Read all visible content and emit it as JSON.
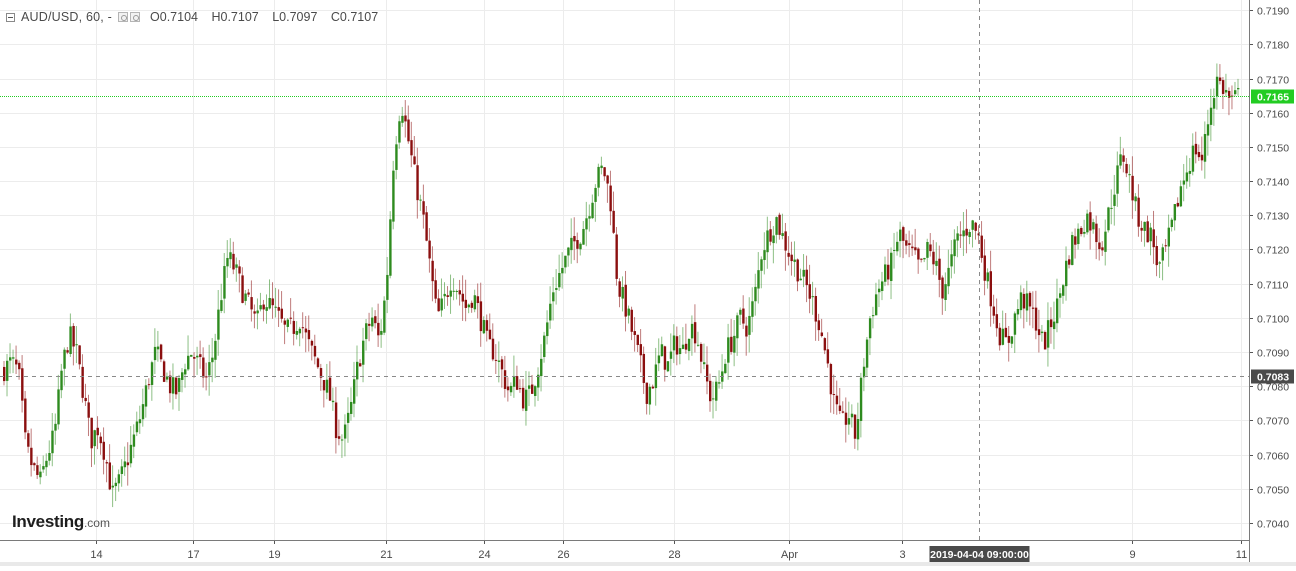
{
  "legend": {
    "symbol": "AUD/USD, 60, -",
    "open_label": "O",
    "open": "0.7104",
    "high_label": "H",
    "high": "0.7107",
    "low_label": "L",
    "low": "0.7097",
    "close_label": "C",
    "close": "0.7107"
  },
  "watermark": {
    "brand": "Investing",
    "suffix": ".com"
  },
  "colors": {
    "up": "#2e8b1f",
    "down": "#8b0f0f",
    "last_price_bg": "#22cc22",
    "crosshair_bg": "#4a4a4a",
    "grid": "#ececec"
  },
  "chart_data": {
    "type": "candlestick",
    "symbol": "AUD/USD",
    "interval": "60",
    "ylim": [
      0.7035,
      0.7193
    ],
    "y_ticks": [
      "0.7040",
      "0.7050",
      "0.7060",
      "0.7070",
      "0.7080",
      "0.7090",
      "0.7100",
      "0.7110",
      "0.7120",
      "0.7130",
      "0.7140",
      "0.7150",
      "0.7160",
      "0.7170",
      "0.7180",
      "0.7190"
    ],
    "x_ticks": [
      "14",
      "17",
      "19",
      "21",
      "24",
      "26",
      "28",
      "Apr",
      "3",
      "9",
      "11"
    ],
    "last_price": "0.7165",
    "crosshair_price": "0.7083",
    "crosshair_time": "2019-04-04 09:00:00",
    "grid": true,
    "price_path": [
      0.7085,
      0.7087,
      0.7084,
      0.7062,
      0.7056,
      0.7052,
      0.706,
      0.7066,
      0.7085,
      0.7095,
      0.709,
      0.7078,
      0.7064,
      0.7068,
      0.706,
      0.7048,
      0.7052,
      0.7058,
      0.7065,
      0.7072,
      0.7082,
      0.709,
      0.7085,
      0.708,
      0.7078,
      0.7087,
      0.709,
      0.7086,
      0.7082,
      0.709,
      0.7106,
      0.7118,
      0.7114,
      0.7108,
      0.7103,
      0.7098,
      0.7106,
      0.7103,
      0.71,
      0.7096,
      0.7097,
      0.71,
      0.7093,
      0.7088,
      0.7083,
      0.7078,
      0.7068,
      0.7064,
      0.7073,
      0.7086,
      0.7095,
      0.71,
      0.7093,
      0.711,
      0.7148,
      0.7164,
      0.7152,
      0.714,
      0.713,
      0.7115,
      0.71,
      0.7105,
      0.7112,
      0.7108,
      0.7103,
      0.7107,
      0.71,
      0.7092,
      0.709,
      0.7084,
      0.7078,
      0.7082,
      0.7076,
      0.7078,
      0.7086,
      0.7095,
      0.7108,
      0.7113,
      0.7118,
      0.7122,
      0.7125,
      0.7132,
      0.714,
      0.7144,
      0.7135,
      0.711,
      0.7104,
      0.7096,
      0.7088,
      0.7078,
      0.7082,
      0.709,
      0.7086,
      0.7093,
      0.709,
      0.7098,
      0.7095,
      0.7084,
      0.7076,
      0.708,
      0.709,
      0.7094,
      0.71,
      0.7097,
      0.7106,
      0.712,
      0.7125,
      0.7129,
      0.7123,
      0.7118,
      0.7114,
      0.711,
      0.7105,
      0.7098,
      0.7088,
      0.7075,
      0.7068,
      0.7072,
      0.7065,
      0.7085,
      0.71,
      0.7108,
      0.7112,
      0.7116,
      0.7125,
      0.712,
      0.7118,
      0.7114,
      0.712,
      0.7116,
      0.7108,
      0.7114,
      0.7123,
      0.7125,
      0.7128,
      0.7124,
      0.7113,
      0.7104,
      0.7095,
      0.7092,
      0.71,
      0.7106,
      0.7103,
      0.7099,
      0.7092,
      0.7098,
      0.7104,
      0.7114,
      0.7122,
      0.7125,
      0.713,
      0.7126,
      0.7121,
      0.713,
      0.714,
      0.7148,
      0.714,
      0.713,
      0.7126,
      0.7124,
      0.7114,
      0.712,
      0.7128,
      0.7138,
      0.7144,
      0.715,
      0.7146,
      0.716,
      0.717,
      0.7167,
      0.7163,
      0.7165
    ]
  }
}
